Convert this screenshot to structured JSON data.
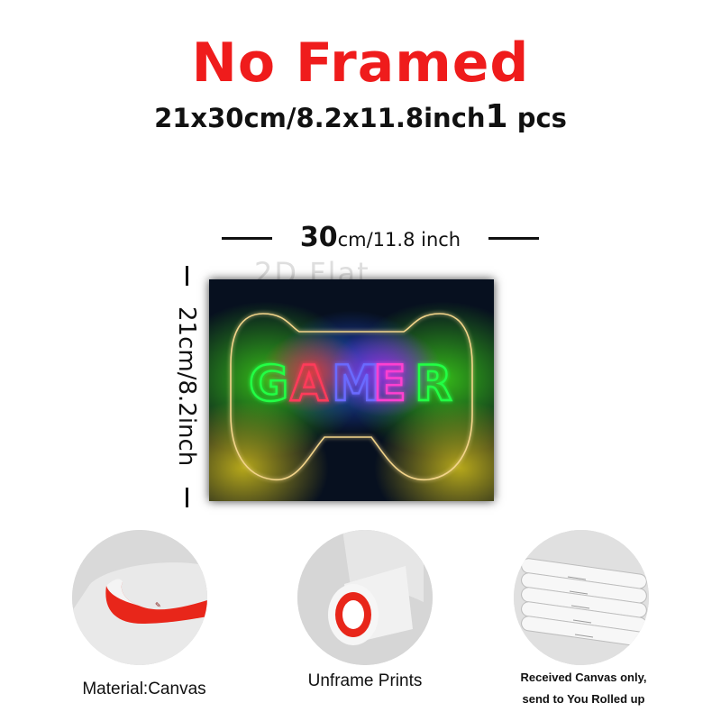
{
  "title": {
    "text": "No Framed",
    "color": "#ef1c1c"
  },
  "size": {
    "dimensions": "21x30cm/8.2x11.8inch",
    "quantity": "1",
    "unit": "pcs"
  },
  "dimension_top": {
    "number": "30",
    "unit_text": "cm/11.8 inch"
  },
  "dimension_left": {
    "text": "21cm/8.2inch"
  },
  "poster": {
    "word": "GAMER",
    "watermark": "2D Flat",
    "letter_colors": [
      "#22ff44",
      "#ff3a5a",
      "#6b6bff",
      "#ff40d0",
      "#22ff44"
    ],
    "controller_color": "#f2d48a",
    "smoke_colors": [
      "#3acb18",
      "#d4c21a",
      "#1f4dd8",
      "#e23a3a",
      "#a02ce0"
    ]
  },
  "features": [
    {
      "caption": "Material:Canvas",
      "icon": "canvas-roll-icon",
      "inner_color": "#e8261a"
    },
    {
      "caption": "Unframe  Prints",
      "icon": "rolled-print-icon",
      "inner_color": "#e8261a"
    },
    {
      "caption_line1": "Received Canvas only,",
      "caption_line2": "send to You Rolled up",
      "icon": "rolled-tubes-icon"
    }
  ]
}
